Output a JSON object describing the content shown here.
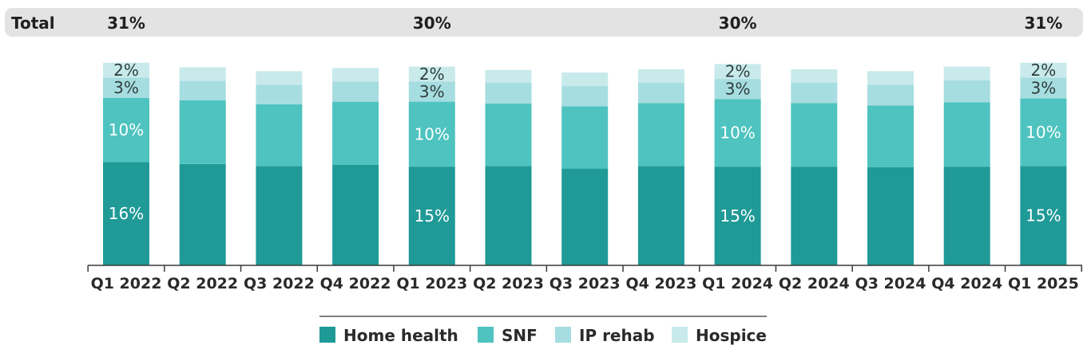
{
  "chart_data": {
    "type": "bar",
    "stacked": true,
    "total_label": "Total",
    "categories": [
      "Q1 2022",
      "Q2 2022",
      "Q3 2022",
      "Q4 2022",
      "Q1 2023",
      "Q2 2023",
      "Q3 2023",
      "Q4 2023",
      "Q1 2024",
      "Q2 2024",
      "Q3 2024",
      "Q4 2024",
      "Q1 2025"
    ],
    "series": [
      {
        "name": "Home health",
        "color": "#1f9a97",
        "values": [
          15.9,
          15.6,
          15.3,
          15.5,
          15.2,
          15.3,
          14.9,
          15.3,
          15.2,
          15.2,
          15.1,
          15.2,
          15.3
        ]
      },
      {
        "name": "SNF",
        "color": "#4ec3bf",
        "values": [
          9.9,
          9.8,
          9.5,
          9.7,
          10.0,
          9.6,
          9.6,
          9.7,
          10.4,
          9.8,
          9.5,
          9.9,
          10.4
        ]
      },
      {
        "name": "IP rehab",
        "color": "#a6dde0",
        "values": [
          3.1,
          3.0,
          3.0,
          3.1,
          3.1,
          3.2,
          3.1,
          3.1,
          3.1,
          3.1,
          3.2,
          3.4,
          3.2
        ]
      },
      {
        "name": "Hospice",
        "color": "#c8eaeb",
        "values": [
          2.3,
          2.1,
          2.1,
          2.1,
          2.3,
          2.0,
          2.1,
          2.1,
          2.3,
          2.1,
          2.1,
          2.1,
          2.3
        ]
      }
    ],
    "data_labels": [
      {
        "category": "Q1 2022",
        "series": "Home health",
        "text": "16%"
      },
      {
        "category": "Q1 2022",
        "series": "SNF",
        "text": "10%"
      },
      {
        "category": "Q1 2022",
        "series": "IP rehab",
        "text": "3%"
      },
      {
        "category": "Q1 2022",
        "series": "Hospice",
        "text": "2%"
      },
      {
        "category": "Q1 2023",
        "series": "Home health",
        "text": "15%"
      },
      {
        "category": "Q1 2023",
        "series": "SNF",
        "text": "10%"
      },
      {
        "category": "Q1 2023",
        "series": "IP rehab",
        "text": "3%"
      },
      {
        "category": "Q1 2023",
        "series": "Hospice",
        "text": "2%"
      },
      {
        "category": "Q1 2024",
        "series": "Home health",
        "text": "15%"
      },
      {
        "category": "Q1 2024",
        "series": "SNF",
        "text": "10%"
      },
      {
        "category": "Q1 2024",
        "series": "IP rehab",
        "text": "3%"
      },
      {
        "category": "Q1 2024",
        "series": "Hospice",
        "text": "2%"
      },
      {
        "category": "Q1 2025",
        "series": "Home health",
        "text": "15%"
      },
      {
        "category": "Q1 2025",
        "series": "SNF",
        "text": "10%"
      },
      {
        "category": "Q1 2025",
        "series": "IP rehab",
        "text": "3%"
      },
      {
        "category": "Q1 2025",
        "series": "Hospice",
        "text": "2%"
      }
    ],
    "totals": [
      {
        "category": "Q1 2022",
        "text": "31%"
      },
      {
        "category": "Q1 2023",
        "text": "30%"
      },
      {
        "category": "Q1 2024",
        "text": "30%"
      },
      {
        "category": "Q1 2025",
        "text": "31%"
      }
    ],
    "ylim": [
      0,
      32
    ],
    "grid": false,
    "legend_position": "bottom"
  }
}
